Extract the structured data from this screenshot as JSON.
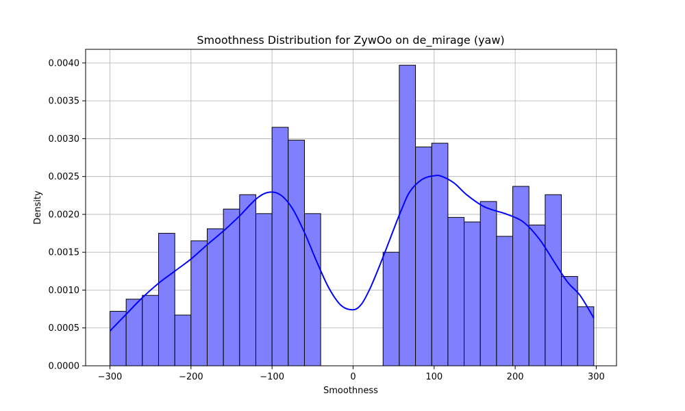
{
  "chart_data": {
    "type": "bar",
    "title": "Smoothness Distribution for ZywOo on de_mirage (yaw)",
    "xlabel": "Smoothness",
    "ylabel": "Density",
    "xlim": [
      -330,
      325
    ],
    "ylim": [
      0,
      0.00418
    ],
    "grid": true,
    "colors": {
      "bar_fill": "#8080ff",
      "bar_edge": "#000000",
      "kde_line": "#0000ff",
      "grid": "#b0b0b0"
    },
    "x_ticks": [
      {
        "value": -300,
        "label": "−300"
      },
      {
        "value": -200,
        "label": "−200"
      },
      {
        "value": -100,
        "label": "−100"
      },
      {
        "value": 0,
        "label": "0"
      },
      {
        "value": 100,
        "label": "100"
      },
      {
        "value": 200,
        "label": "200"
      },
      {
        "value": 300,
        "label": "300"
      }
    ],
    "y_ticks": [
      {
        "value": 0.0,
        "label": "0.0000"
      },
      {
        "value": 0.0005,
        "label": "0.0005"
      },
      {
        "value": 0.001,
        "label": "0.0010"
      },
      {
        "value": 0.0015,
        "label": "0.0015"
      },
      {
        "value": 0.002,
        "label": "0.0020"
      },
      {
        "value": 0.0025,
        "label": "0.0025"
      },
      {
        "value": 0.003,
        "label": "0.0030"
      },
      {
        "value": 0.0035,
        "label": "0.0035"
      },
      {
        "value": 0.004,
        "label": "0.0040"
      }
    ],
    "histogram": {
      "bins": [
        {
          "x0": -300,
          "x1": -280,
          "density": 0.00072
        },
        {
          "x0": -280,
          "x1": -260,
          "density": 0.00088
        },
        {
          "x0": -260,
          "x1": -240,
          "density": 0.00093
        },
        {
          "x0": -240,
          "x1": -220,
          "density": 0.00175
        },
        {
          "x0": -220,
          "x1": -200,
          "density": 0.00067
        },
        {
          "x0": -200,
          "x1": -180,
          "density": 0.00165
        },
        {
          "x0": -180,
          "x1": -160,
          "density": 0.00181
        },
        {
          "x0": -160,
          "x1": -140,
          "density": 0.00207
        },
        {
          "x0": -140,
          "x1": -120,
          "density": 0.00226
        },
        {
          "x0": -120,
          "x1": -100,
          "density": 0.00201
        },
        {
          "x0": -100,
          "x1": -80,
          "density": 0.00315
        },
        {
          "x0": -80,
          "x1": -60,
          "density": 0.00298
        },
        {
          "x0": -60,
          "x1": -40,
          "density": 0.00201
        },
        {
          "x0": 37,
          "x1": 57,
          "density": 0.0015
        },
        {
          "x0": 57,
          "x1": 77,
          "density": 0.00397
        },
        {
          "x0": 77,
          "x1": 97,
          "density": 0.00289
        },
        {
          "x0": 97,
          "x1": 117,
          "density": 0.00294
        },
        {
          "x0": 117,
          "x1": 137,
          "density": 0.00196
        },
        {
          "x0": 137,
          "x1": 157,
          "density": 0.0019
        },
        {
          "x0": 157,
          "x1": 177,
          "density": 0.00217
        },
        {
          "x0": 177,
          "x1": 197,
          "density": 0.00171
        },
        {
          "x0": 197,
          "x1": 217,
          "density": 0.00237
        },
        {
          "x0": 217,
          "x1": 237,
          "density": 0.00186
        },
        {
          "x0": 237,
          "x1": 257,
          "density": 0.00226
        },
        {
          "x0": 257,
          "x1": 277,
          "density": 0.00118
        },
        {
          "x0": 277,
          "x1": 297,
          "density": 0.00078
        }
      ]
    },
    "kde": {
      "x": [
        -300,
        -280,
        -260,
        -240,
        -220,
        -200,
        -180,
        -160,
        -140,
        -120,
        -105,
        -90,
        -75,
        -60,
        -45,
        -30,
        -15,
        0,
        10,
        20,
        30,
        40,
        50,
        60,
        70,
        85,
        100,
        110,
        125,
        140,
        160,
        175,
        190,
        210,
        230,
        250,
        265,
        280,
        297
      ],
      "y": [
        0.00046,
        0.00068,
        0.0009,
        0.00109,
        0.00125,
        0.00141,
        0.0016,
        0.00178,
        0.00198,
        0.0022,
        0.00229,
        0.00226,
        0.00208,
        0.00176,
        0.00138,
        0.00103,
        0.0008,
        0.00074,
        0.00081,
        0.001,
        0.00125,
        0.00152,
        0.0018,
        0.00207,
        0.0023,
        0.00246,
        0.00251,
        0.0025,
        0.00241,
        0.00226,
        0.00211,
        0.00205,
        0.002,
        0.0019,
        0.00167,
        0.00134,
        0.0011,
        0.00093,
        0.00063
      ]
    }
  }
}
